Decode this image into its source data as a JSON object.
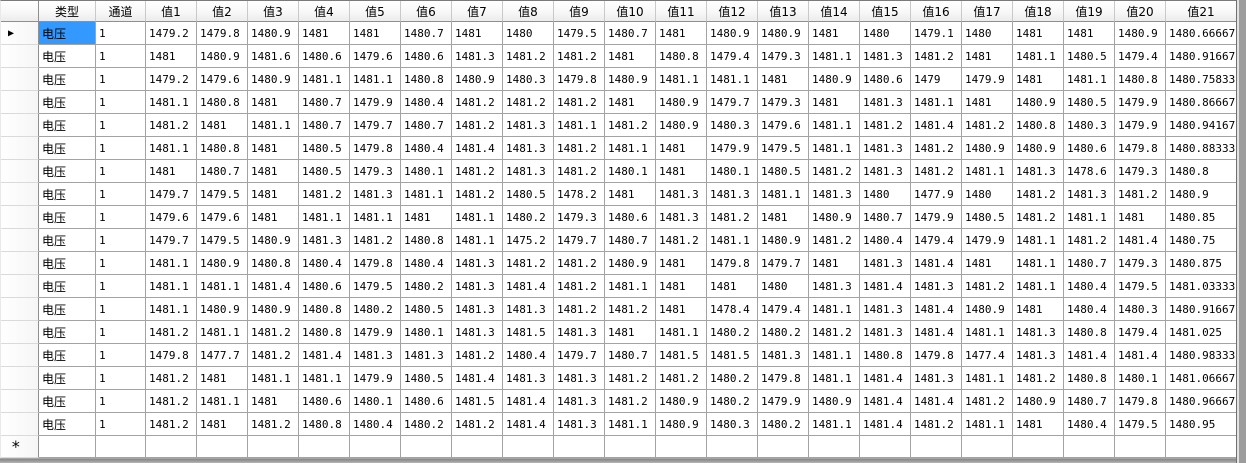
{
  "table": {
    "corner_label": "",
    "columns": [
      "类型",
      "通道",
      "值1",
      "值2",
      "值3",
      "值4",
      "值5",
      "值6",
      "值7",
      "值8",
      "值9",
      "值10",
      "值11",
      "值12",
      "值13",
      "值14",
      "值15",
      "值16",
      "值17",
      "值18",
      "值19",
      "值20",
      "值21"
    ],
    "markers": {
      "current_row": "▶",
      "new_row": "*"
    },
    "selection": {
      "row": 0,
      "column": "类型"
    },
    "colors": {
      "selection_bg": "#3399FF",
      "grid_line": "#A3A3A3",
      "header_bg": "#F5F5F5"
    },
    "rows": [
      {
        "type": "电压",
        "channel": "1",
        "values": [
          "1479.2",
          "1479.8",
          "1480.9",
          "1481",
          "1481",
          "1480.7",
          "1481",
          "1480",
          "1479.5",
          "1480.7",
          "1481",
          "1480.9",
          "1480.9",
          "1481",
          "1480",
          "1479.1",
          "1480",
          "1481",
          "1481",
          "1480.9",
          "1480.66667"
        ]
      },
      {
        "type": "电压",
        "channel": "1",
        "values": [
          "1481",
          "1480.9",
          "1481.6",
          "1480.6",
          "1479.6",
          "1480.6",
          "1481.3",
          "1481.2",
          "1481.2",
          "1481",
          "1480.8",
          "1479.4",
          "1479.3",
          "1481.1",
          "1481.3",
          "1481.2",
          "1481",
          "1481.1",
          "1480.5",
          "1479.4",
          "1480.91667"
        ]
      },
      {
        "type": "电压",
        "channel": "1",
        "values": [
          "1479.2",
          "1479.6",
          "1480.9",
          "1481.1",
          "1481.1",
          "1480.8",
          "1480.9",
          "1480.3",
          "1479.8",
          "1480.9",
          "1481.1",
          "1481.1",
          "1481",
          "1480.9",
          "1480.6",
          "1479",
          "1479.9",
          "1481",
          "1481.1",
          "1480.8",
          "1480.75833"
        ]
      },
      {
        "type": "电压",
        "channel": "1",
        "values": [
          "1481.1",
          "1480.8",
          "1481",
          "1480.7",
          "1479.9",
          "1480.4",
          "1481.2",
          "1481.2",
          "1481.2",
          "1481",
          "1480.9",
          "1479.7",
          "1479.3",
          "1481",
          "1481.3",
          "1481.1",
          "1481",
          "1480.9",
          "1480.5",
          "1479.9",
          "1480.86667"
        ]
      },
      {
        "type": "电压",
        "channel": "1",
        "values": [
          "1481.2",
          "1481",
          "1481.1",
          "1480.7",
          "1479.7",
          "1480.7",
          "1481.2",
          "1481.3",
          "1481.1",
          "1481.2",
          "1480.9",
          "1480.3",
          "1479.6",
          "1481.1",
          "1481.2",
          "1481.4",
          "1481.2",
          "1480.8",
          "1480.3",
          "1479.9",
          "1480.94167"
        ]
      },
      {
        "type": "电压",
        "channel": "1",
        "values": [
          "1481.1",
          "1480.8",
          "1481",
          "1480.5",
          "1479.8",
          "1480.4",
          "1481.4",
          "1481.3",
          "1481.2",
          "1481.1",
          "1481",
          "1479.9",
          "1479.5",
          "1481.1",
          "1481.3",
          "1481.2",
          "1480.9",
          "1480.9",
          "1480.6",
          "1479.8",
          "1480.88333"
        ]
      },
      {
        "type": "电压",
        "channel": "1",
        "values": [
          "1481",
          "1480.7",
          "1481",
          "1480.5",
          "1479.3",
          "1480.1",
          "1481.2",
          "1481.3",
          "1481.2",
          "1480.1",
          "1481",
          "1480.1",
          "1480.5",
          "1481.2",
          "1481.3",
          "1481.2",
          "1481.1",
          "1481.3",
          "1478.6",
          "1479.3",
          "1480.8"
        ]
      },
      {
        "type": "电压",
        "channel": "1",
        "values": [
          "1479.7",
          "1479.5",
          "1481",
          "1481.2",
          "1481.3",
          "1481.1",
          "1481.2",
          "1480.5",
          "1478.2",
          "1481",
          "1481.3",
          "1481.3",
          "1481.1",
          "1481.3",
          "1480",
          "1477.9",
          "1480",
          "1481.2",
          "1481.3",
          "1481.2",
          "1480.9"
        ]
      },
      {
        "type": "电压",
        "channel": "1",
        "values": [
          "1479.6",
          "1479.6",
          "1481",
          "1481.1",
          "1481.1",
          "1481",
          "1481.1",
          "1480.2",
          "1479.3",
          "1480.6",
          "1481.3",
          "1481.2",
          "1481",
          "1480.9",
          "1480.7",
          "1479.9",
          "1480.5",
          "1481.2",
          "1481.1",
          "1481",
          "1480.85"
        ]
      },
      {
        "type": "电压",
        "channel": "1",
        "values": [
          "1479.7",
          "1479.5",
          "1480.9",
          "1481.3",
          "1481.2",
          "1480.8",
          "1481.1",
          "1475.2",
          "1479.7",
          "1480.7",
          "1481.2",
          "1481.1",
          "1480.9",
          "1481.2",
          "1480.4",
          "1479.4",
          "1479.9",
          "1481.1",
          "1481.2",
          "1481.4",
          "1480.75"
        ]
      },
      {
        "type": "电压",
        "channel": "1",
        "values": [
          "1481.1",
          "1480.9",
          "1480.8",
          "1480.4",
          "1479.8",
          "1480.4",
          "1481.3",
          "1481.2",
          "1481.2",
          "1480.9",
          "1481",
          "1479.8",
          "1479.7",
          "1481",
          "1481.3",
          "1481.4",
          "1481",
          "1481.1",
          "1480.7",
          "1479.3",
          "1480.875"
        ]
      },
      {
        "type": "电压",
        "channel": "1",
        "values": [
          "1481.1",
          "1481.1",
          "1481.4",
          "1480.6",
          "1479.5",
          "1480.2",
          "1481.3",
          "1481.4",
          "1481.2",
          "1481.1",
          "1481",
          "1481",
          "1480",
          "1481.3",
          "1481.4",
          "1481.3",
          "1481.2",
          "1481.1",
          "1480.4",
          "1479.5",
          "1481.03333"
        ]
      },
      {
        "type": "电压",
        "channel": "1",
        "values": [
          "1481.1",
          "1480.9",
          "1480.9",
          "1480.8",
          "1480.2",
          "1480.5",
          "1481.3",
          "1481.3",
          "1481.2",
          "1481.2",
          "1481",
          "1478.4",
          "1479.4",
          "1481.1",
          "1481.3",
          "1481.4",
          "1480.9",
          "1481",
          "1480.4",
          "1480.3",
          "1480.91667"
        ]
      },
      {
        "type": "电压",
        "channel": "1",
        "values": [
          "1481.2",
          "1481.1",
          "1481.2",
          "1480.8",
          "1479.9",
          "1480.1",
          "1481.3",
          "1481.5",
          "1481.3",
          "1481",
          "1481.1",
          "1480.2",
          "1480.2",
          "1481.2",
          "1481.3",
          "1481.4",
          "1481.1",
          "1481.3",
          "1480.8",
          "1479.4",
          "1481.025"
        ]
      },
      {
        "type": "电压",
        "channel": "1",
        "values": [
          "1479.8",
          "1477.7",
          "1481.2",
          "1481.4",
          "1481.3",
          "1481.3",
          "1481.2",
          "1480.4",
          "1479.7",
          "1480.7",
          "1481.5",
          "1481.5",
          "1481.3",
          "1481.1",
          "1480.8",
          "1479.8",
          "1477.4",
          "1481.3",
          "1481.4",
          "1481.4",
          "1480.98333"
        ]
      },
      {
        "type": "电压",
        "channel": "1",
        "values": [
          "1481.2",
          "1481",
          "1481.1",
          "1481.1",
          "1479.9",
          "1480.5",
          "1481.4",
          "1481.3",
          "1481.3",
          "1481.2",
          "1481.2",
          "1480.2",
          "1479.8",
          "1481.1",
          "1481.4",
          "1481.3",
          "1481.1",
          "1481.2",
          "1480.8",
          "1480.1",
          "1481.06667"
        ]
      },
      {
        "type": "电压",
        "channel": "1",
        "values": [
          "1481.2",
          "1481.1",
          "1481",
          "1480.6",
          "1480.1",
          "1480.6",
          "1481.5",
          "1481.4",
          "1481.3",
          "1481.2",
          "1480.9",
          "1480.2",
          "1479.9",
          "1480.9",
          "1481.4",
          "1481.4",
          "1481.2",
          "1480.9",
          "1480.7",
          "1479.8",
          "1480.96667"
        ]
      },
      {
        "type": "电压",
        "channel": "1",
        "values": [
          "1481.2",
          "1481",
          "1481.2",
          "1480.8",
          "1480.4",
          "1480.2",
          "1481.2",
          "1481.4",
          "1481.3",
          "1481.1",
          "1480.9",
          "1480.3",
          "1480.2",
          "1481.1",
          "1481.4",
          "1481.2",
          "1481.1",
          "1481",
          "1480.4",
          "1479.5",
          "1480.95"
        ]
      }
    ]
  }
}
